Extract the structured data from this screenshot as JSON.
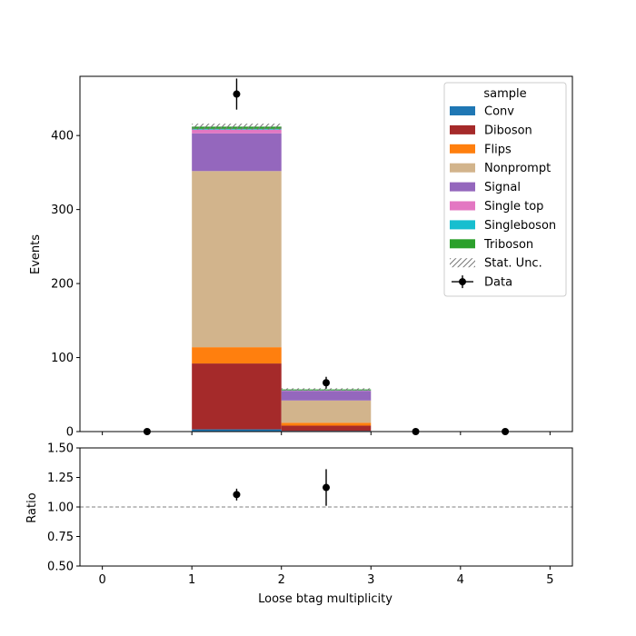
{
  "chart_data": [
    {
      "type": "bar",
      "stacked": true,
      "xlabel": "",
      "ylabel": "Events",
      "xlim": [
        -0.25,
        5.25
      ],
      "ylim": [
        0,
        480
      ],
      "yticks": [
        0,
        100,
        200,
        300,
        400
      ],
      "bin_edges": [
        0,
        1,
        2,
        3,
        4,
        5
      ],
      "series": [
        {
          "name": "Conv",
          "color": "#1f77b4",
          "values": [
            0,
            3,
            1,
            0,
            0
          ]
        },
        {
          "name": "Diboson",
          "color": "#a52a2a",
          "values": [
            0,
            89,
            7,
            0,
            0
          ]
        },
        {
          "name": "Flips",
          "color": "#ff7f0e",
          "values": [
            0,
            22,
            4,
            0,
            0
          ]
        },
        {
          "name": "Nonprompt",
          "color": "#d2b48c",
          "values": [
            0,
            238,
            30,
            0,
            0
          ]
        },
        {
          "name": "Signal",
          "color": "#9467bd",
          "values": [
            0,
            51,
            13,
            0,
            0
          ]
        },
        {
          "name": "Single top",
          "color": "#e377c2",
          "values": [
            0,
            5,
            0.5,
            0,
            0
          ]
        },
        {
          "name": "Singleboson",
          "color": "#17becf",
          "values": [
            0,
            1,
            0.2,
            0,
            0
          ]
        },
        {
          "name": "Triboson",
          "color": "#2ca02c",
          "values": [
            0,
            3,
            1.3,
            0,
            0
          ]
        }
      ],
      "stat_unc": {
        "name": "Stat. Unc.",
        "totals": [
          0,
          412,
          57,
          0,
          0
        ],
        "errors": [
          0,
          4,
          1.5,
          0,
          0
        ]
      },
      "data": {
        "name": "Data",
        "x": [
          0.5,
          1.5,
          2.5,
          3.5,
          4.5
        ],
        "y": [
          0,
          456,
          66,
          0,
          0
        ],
        "yerr": [
          0,
          21,
          8,
          0,
          0
        ]
      },
      "legend": {
        "title": "sample",
        "placement": "upper-right"
      }
    },
    {
      "type": "scatter",
      "xlabel": "Loose btag multiplicity",
      "ylabel": "Ratio",
      "xlim": [
        -0.25,
        5.25
      ],
      "ylim": [
        0.5,
        1.5
      ],
      "xticks": [
        0,
        1,
        2,
        3,
        4,
        5
      ],
      "yticks": [
        "0.50",
        "0.75",
        "1.00",
        "1.25",
        "1.50"
      ],
      "reference_line": 1.0,
      "x": [
        1.5,
        2.5
      ],
      "y": [
        1.105,
        1.165
      ],
      "yerr": [
        0.05,
        0.155
      ]
    }
  ]
}
